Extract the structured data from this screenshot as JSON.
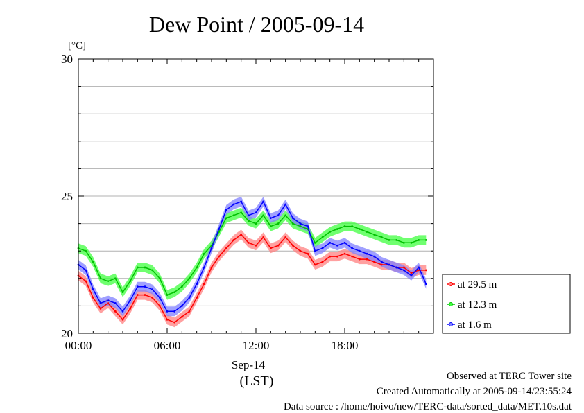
{
  "chart_data": {
    "type": "line",
    "title": "Dew Point / 2005-09-14",
    "ylabel": "[°C]",
    "ylim": [
      20,
      30
    ],
    "xlim": [
      0,
      24
    ],
    "yticks": [
      {
        "value": 20,
        "label": "20"
      },
      {
        "value": 25,
        "label": "25"
      },
      {
        "value": 30,
        "label": "30"
      }
    ],
    "xticks": [
      {
        "value": 0,
        "label": "00:00"
      },
      {
        "value": 6,
        "label": "06:00"
      },
      {
        "value": 12,
        "label": "12:00"
      },
      {
        "value": 18,
        "label": "18:00"
      }
    ],
    "xsublabel": "Sep-14",
    "xunit": "(LST)",
    "grid": true,
    "legend_position": "right",
    "series": [
      {
        "name": "at 29.5 m",
        "color": "#ff0000",
        "fill": "#ff8080",
        "x": [
          0,
          0.5,
          1,
          1.5,
          2,
          2.5,
          3,
          3.5,
          4,
          4.5,
          5,
          5.5,
          6,
          6.5,
          7,
          7.5,
          8,
          8.5,
          9,
          9.5,
          10,
          10.5,
          11,
          11.5,
          12,
          12.5,
          13,
          13.5,
          14,
          14.5,
          15,
          15.5,
          16,
          16.5,
          17,
          17.5,
          18,
          18.5,
          19,
          19.5,
          20,
          20.5,
          21,
          21.5,
          22,
          22.5,
          23,
          23.5
        ],
        "y": [
          22.1,
          21.9,
          21.3,
          20.9,
          21.1,
          20.8,
          20.5,
          20.9,
          21.4,
          21.4,
          21.3,
          21.0,
          20.5,
          20.4,
          20.6,
          20.8,
          21.3,
          21.8,
          22.4,
          22.8,
          23.1,
          23.4,
          23.6,
          23.3,
          23.2,
          23.5,
          23.1,
          23.2,
          23.5,
          23.2,
          23.0,
          22.9,
          22.5,
          22.6,
          22.8,
          22.8,
          22.9,
          22.8,
          22.7,
          22.7,
          22.6,
          22.5,
          22.5,
          22.4,
          22.4,
          22.2,
          22.3,
          22.3
        ]
      },
      {
        "name": "at 12.3 m",
        "color": "#00c000",
        "fill": "#40ff40",
        "x": [
          0,
          0.5,
          1,
          1.5,
          2,
          2.5,
          3,
          3.5,
          4,
          4.5,
          5,
          5.5,
          6,
          6.5,
          7,
          7.5,
          8,
          8.5,
          9,
          9.5,
          10,
          10.5,
          11,
          11.5,
          12,
          12.5,
          13,
          13.5,
          14,
          14.5,
          15,
          15.5,
          16,
          16.5,
          17,
          17.5,
          18,
          18.5,
          19,
          19.5,
          20,
          20.5,
          21,
          21.5,
          22,
          22.5,
          23,
          23.5
        ],
        "y": [
          23.1,
          23.0,
          22.6,
          22.0,
          21.9,
          22.0,
          21.5,
          21.9,
          22.4,
          22.4,
          22.3,
          22.0,
          21.4,
          21.5,
          21.7,
          22.0,
          22.4,
          22.9,
          23.2,
          23.7,
          24.2,
          24.3,
          24.4,
          24.1,
          24.0,
          24.3,
          23.9,
          24.0,
          24.3,
          24.0,
          23.9,
          23.8,
          23.3,
          23.5,
          23.7,
          23.8,
          23.9,
          23.9,
          23.8,
          23.7,
          23.6,
          23.5,
          23.4,
          23.4,
          23.3,
          23.3,
          23.4,
          23.4
        ]
      },
      {
        "name": "at 1.6 m",
        "color": "#0000ff",
        "fill": "#8080ff",
        "x": [
          0,
          0.5,
          1,
          1.5,
          2,
          2.5,
          3,
          3.5,
          4,
          4.5,
          5,
          5.5,
          6,
          6.5,
          7,
          7.5,
          8,
          8.5,
          9,
          9.5,
          10,
          10.5,
          11,
          11.5,
          12,
          12.5,
          13,
          13.5,
          14,
          14.5,
          15,
          15.5,
          16,
          16.5,
          17,
          17.5,
          18,
          18.5,
          19,
          19.5,
          20,
          20.5,
          21,
          21.5,
          22,
          22.5,
          23,
          23.5
        ],
        "y": [
          22.5,
          22.3,
          21.6,
          21.1,
          21.2,
          21.1,
          20.8,
          21.2,
          21.7,
          21.7,
          21.6,
          21.3,
          20.8,
          20.8,
          21.0,
          21.3,
          21.8,
          22.4,
          23.1,
          23.8,
          24.5,
          24.7,
          24.8,
          24.3,
          24.4,
          24.8,
          24.2,
          24.3,
          24.7,
          24.2,
          24.0,
          23.9,
          23.0,
          23.1,
          23.3,
          23.2,
          23.3,
          23.1,
          23.0,
          22.9,
          22.8,
          22.6,
          22.5,
          22.4,
          22.3,
          22.1,
          22.4,
          21.8
        ]
      }
    ]
  },
  "footer": {
    "line1": "Observed at TERC Tower site",
    "line2": "Created Automatically at 2005-09-14/23:55:24",
    "line3": "Data source : /home/hoivo/new/TERC-data/sorted_data/MET.10s.dat"
  }
}
